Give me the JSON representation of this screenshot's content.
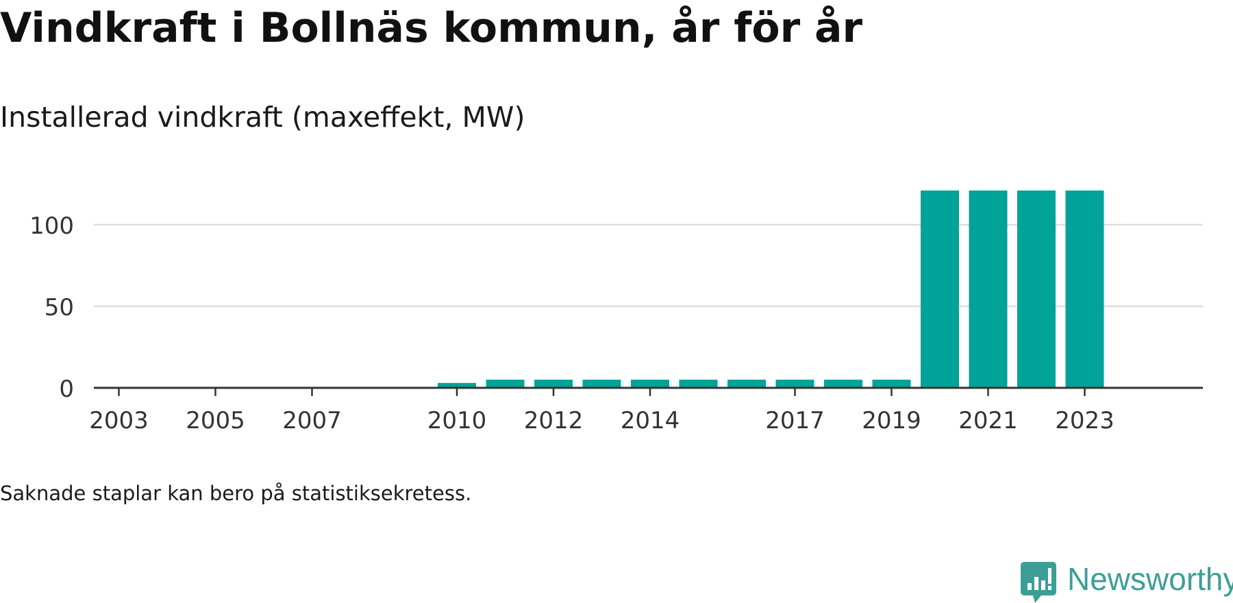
{
  "title": "Vindkraft i Bollnäs kommun, år för år",
  "subtitle": "Installerad vindkraft (maxeffekt, MW)",
  "note": "Saknade staplar kan bero på statistiksekretess.",
  "brand": {
    "name": "Newsworthy",
    "icon": "newsworthy-logo-icon",
    "color": "#3d9e98"
  },
  "colors": {
    "bar": "#00a398",
    "grid": "#dddddd",
    "axis": "#333333",
    "tick_text": "#333333"
  },
  "chart_data": {
    "type": "bar",
    "title": "Installerad vindkraft (maxeffekt, MW)",
    "xlabel": "",
    "ylabel": "",
    "categories": [
      "2002",
      "2003",
      "2004",
      "2005",
      "2006",
      "2007",
      "2008",
      "2009",
      "2010",
      "2011",
      "2012",
      "2013",
      "2014",
      "2015",
      "2016",
      "2017",
      "2018",
      "2019",
      "2020",
      "2021",
      "2022",
      "2023"
    ],
    "x_tick_labels": [
      "2003",
      "2005",
      "2007",
      "2010",
      "2012",
      "2014",
      "2017",
      "2019",
      "2021",
      "2023"
    ],
    "values": [
      null,
      null,
      null,
      null,
      null,
      null,
      null,
      null,
      3,
      5,
      5,
      5,
      5,
      5,
      5,
      5,
      5,
      5,
      121,
      121,
      121,
      121
    ],
    "ylim": [
      0,
      121
    ],
    "yticks": [
      0,
      50,
      100
    ],
    "grid": true,
    "legend": "none"
  }
}
